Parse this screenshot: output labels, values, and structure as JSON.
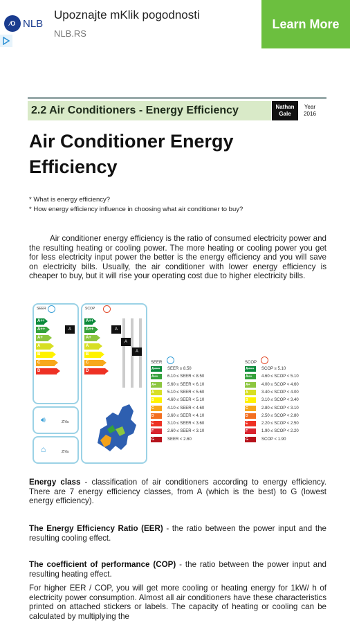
{
  "ad": {
    "logo_text": "NLB",
    "logo_mark": "NLB-logo",
    "title": "Upoznajte mKlik pogodnosti",
    "url": "NLB.RS",
    "cta": "Learn More",
    "choices_icon": "adchoices-icon",
    "cta_color": "#6cbf3f",
    "brand_color": "#1a3c8f"
  },
  "doc": {
    "section": "2.2 Air Conditioners - Energy Efficiency",
    "author": "Nathan Gale",
    "year_label": "Year",
    "year": "2016",
    "title": "Air Conditioner Energy Efficiency",
    "questions": [
      "* What is energy efficiency?",
      "* How energy efficiency influence in choosing what air conditioner to buy?"
    ],
    "intro": "Air conditioner energy efficiency is the ratio of consumed electricity power and the resulting heating or cooling power. The more heating or cooling power you get for less electricity input power the better is the energy efficiency and you will save on electricity bills. Usually, the air conditioner with lower energy efficiency is cheaper to buy, but it will rise your operating cost due to higher electricity bills.",
    "energy_class_term": "Energy class",
    "energy_class_def": " - classification of air conditioners according to energy efficiency. There are 7 energy efficiency classes, from A (which is the best) to G (lowest energy efficiency).",
    "eer_term": "The Energy Efficiency Ratio (EER)",
    "eer_def": "  - the ratio between the power input and the resulting cooling effect.",
    "cop_term": "The coefficient of performance (COP)",
    "cop_def": " - the ratio between the power input and resulting heating effect.",
    "tail": "For higher EER / COP, you will get more cooling or heating energy for 1kW/ h of electricity power consumption. Almost all air conditioners have these characteristics printed on attached stickers or labels. The capacity of heating or cooling can be calculated by multiplying the"
  },
  "labels": {
    "left_head": "SEER",
    "right_head": "SCOP",
    "sound_value": "ZIVa",
    "sound_value2": "ZIVa",
    "classes": [
      "A+++",
      "A++",
      "A+",
      "A",
      "B",
      "C",
      "D"
    ],
    "class_colors": [
      "#0a8a3a",
      "#35a13b",
      "#8cc63f",
      "#d7df23",
      "#fff200",
      "#f7a81b",
      "#ee3124"
    ],
    "seer_table": [
      {
        "cls": "A+++",
        "text": "SEER ≥ 8.50"
      },
      {
        "cls": "A++",
        "text": "6.10 ≤ SEER < 8.50"
      },
      {
        "cls": "A+",
        "text": "5.60 ≤ SEER < 6.10"
      },
      {
        "cls": "A",
        "text": "5.10 ≤ SEER < 5.60"
      },
      {
        "cls": "B",
        "text": "4.60 ≤ SEER < 5.10"
      },
      {
        "cls": "C",
        "text": "4.10 ≤ SEER < 4.60"
      },
      {
        "cls": "D",
        "text": "3.60 ≤ SEER < 4.10"
      },
      {
        "cls": "E",
        "text": "3.10 ≤ SEER < 3.60"
      },
      {
        "cls": "F",
        "text": "2.60 ≤ SEER < 3.10"
      },
      {
        "cls": "G",
        "text": "SEER < 2.60"
      }
    ],
    "scop_table": [
      {
        "cls": "A+++",
        "text": "SCOP ≥ 5.10"
      },
      {
        "cls": "A++",
        "text": "4.60 ≤ SCOP < 5.10"
      },
      {
        "cls": "A+",
        "text": "4.00 ≤ SCOP < 4.60"
      },
      {
        "cls": "A",
        "text": "3.40 ≤ SCOP < 4.00"
      },
      {
        "cls": "B",
        "text": "3.10 ≤ SCOP < 3.40"
      },
      {
        "cls": "C",
        "text": "2.80 ≤ SCOP < 3.10"
      },
      {
        "cls": "D",
        "text": "2.50 ≤ SCOP < 2.80"
      },
      {
        "cls": "E",
        "text": "2.20 ≤ SCOP < 2.50"
      },
      {
        "cls": "F",
        "text": "1.90 ≤ SCOP < 2.20"
      },
      {
        "cls": "G",
        "text": "SCOP < 1.90"
      }
    ],
    "table_colors": [
      "#0a8a3a",
      "#35a13b",
      "#8cc63f",
      "#d7df23",
      "#fff200",
      "#f7a81b",
      "#f36f21",
      "#ee3124",
      "#d9232e",
      "#b5121b"
    ]
  }
}
